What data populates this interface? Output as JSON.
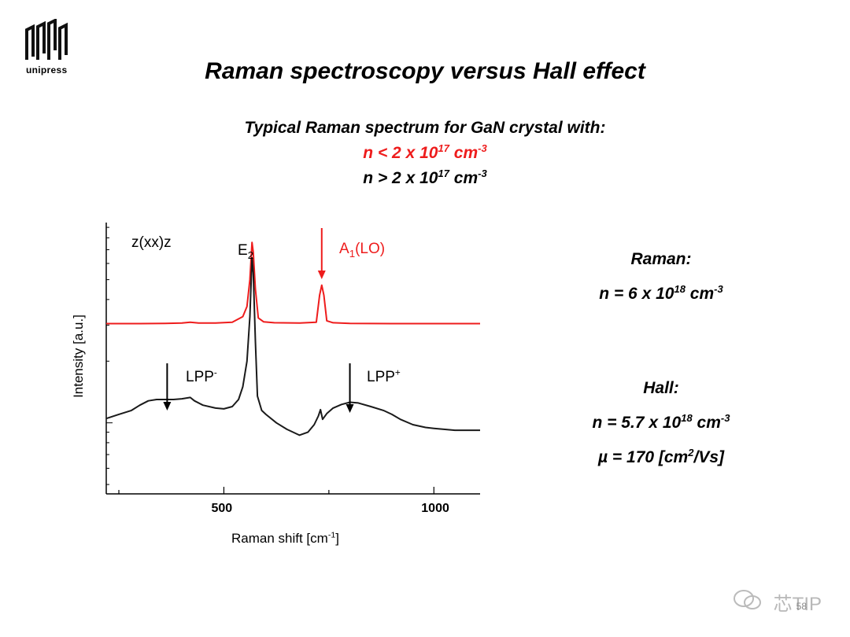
{
  "logo": {
    "name": "unipress"
  },
  "title": "Raman spectroscopy versus Hall effect",
  "subtitle": {
    "line1": "Typical Raman spectrum for GaN crystal with:",
    "line2": {
      "base": "n < 2 x 10",
      "exp": "17",
      "unit": " cm",
      "unit_exp": "-3",
      "color": "#ee1c1c"
    },
    "line3": {
      "base": "n > 2 x 10",
      "exp": "17",
      "unit": " cm",
      "unit_exp": "-3",
      "color": "#000000"
    }
  },
  "right_panel": {
    "raman_heading": "Raman:",
    "raman_value": {
      "base": "n = 6 x 10",
      "exp": "18",
      "unit": " cm",
      "unit_exp": "-3"
    },
    "hall_heading": "Hall:",
    "hall_n": {
      "base": "n = 5.7 x 10",
      "exp": "18",
      "unit": " cm",
      "unit_exp": "-3"
    },
    "hall_mu": {
      "base": "µ = 170 [cm",
      "exp": "2",
      "tail": "/Vs]"
    }
  },
  "watermark": "芯TIP",
  "page_number": "58",
  "chart_data": {
    "type": "line",
    "xlabel": "Raman shift [cm",
    "xlabel_exp": "-1",
    "xlabel_close": "]",
    "ylabel": "Intensity [a.u.]",
    "xlim": [
      220,
      1110
    ],
    "yscale": "log",
    "y_units": "arbitrary (relative)",
    "x_ticks": [
      500,
      1000
    ],
    "grid": false,
    "annotations": {
      "geometry": "z(xx)z",
      "e2": {
        "base": "E",
        "sub": "2"
      },
      "a1lo": {
        "base": "A",
        "sub": "1",
        "tail": "(LO)"
      },
      "lpp_minus": {
        "base": "LPP",
        "sup": "-"
      },
      "lpp_plus": {
        "base": "LPP",
        "sup": "+"
      }
    },
    "series": [
      {
        "color": "#ee1c1c",
        "x": [
          220,
          300,
          360,
          400,
          420,
          440,
          480,
          520,
          545,
          555,
          562,
          567,
          570,
          575,
          582,
          595,
          620,
          680,
          720,
          728,
          733,
          738,
          745,
          760,
          800,
          900,
          1000,
          1110
        ],
        "y": [
          3.05,
          3.05,
          3.06,
          3.07,
          3.1,
          3.07,
          3.07,
          3.1,
          3.3,
          3.7,
          5.0,
          7.6,
          6.8,
          4.5,
          3.25,
          3.11,
          3.08,
          3.07,
          3.1,
          4.2,
          4.7,
          4.2,
          3.15,
          3.08,
          3.06,
          3.05,
          3.05,
          3.05
        ]
      },
      {
        "color": "#1a1a1a",
        "x": [
          220,
          250,
          280,
          300,
          320,
          340,
          360,
          380,
          400,
          410,
          420,
          430,
          450,
          480,
          500,
          520,
          535,
          545,
          555,
          562,
          567,
          570,
          575,
          580,
          590,
          600,
          625,
          650,
          680,
          700,
          715,
          725,
          730,
          735,
          745,
          760,
          780,
          800,
          820,
          850,
          880,
          900,
          920,
          950,
          980,
          1000,
          1050,
          1110
        ],
        "y": [
          1.05,
          1.1,
          1.15,
          1.22,
          1.28,
          1.3,
          1.3,
          1.3,
          1.31,
          1.32,
          1.33,
          1.28,
          1.22,
          1.18,
          1.17,
          1.2,
          1.3,
          1.5,
          2.0,
          3.3,
          6.4,
          5.4,
          2.5,
          1.35,
          1.15,
          1.1,
          1.0,
          0.93,
          0.87,
          0.9,
          0.98,
          1.08,
          1.16,
          1.04,
          1.11,
          1.18,
          1.23,
          1.26,
          1.25,
          1.2,
          1.15,
          1.1,
          1.04,
          0.98,
          0.95,
          0.94,
          0.92,
          0.92
        ]
      }
    ]
  }
}
